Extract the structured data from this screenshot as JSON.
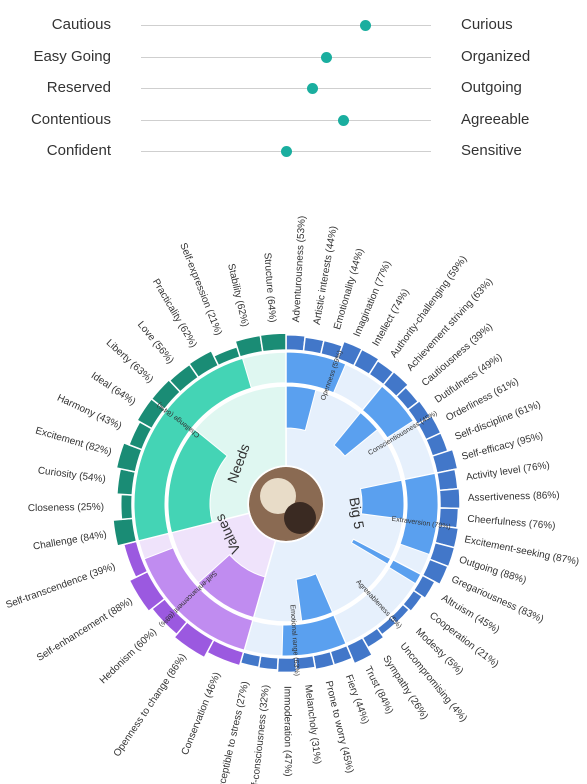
{
  "sliders": [
    {
      "left": "Cautious",
      "right": "Curious",
      "value": 0.773
    },
    {
      "left": "Easy Going",
      "right": "Organized",
      "value": 0.638
    },
    {
      "left": "Reserved",
      "right": "Outgoing",
      "value": 0.59
    },
    {
      "left": "Contentious",
      "right": "Agreeable",
      "value": 0.697
    },
    {
      "left": "Confident",
      "right": "Sensitive",
      "value": 0.503
    }
  ],
  "colors": {
    "needs": "#1a8c75",
    "needs_light": "#44d4b5",
    "needs_pale": "#dff7f1",
    "values": "#9b59e0",
    "values_light": "#c08cf0",
    "values_pale": "#efe3fb",
    "big5": "#4277c9",
    "big5_light": "#5aa0ef",
    "big5_pale": "#e6f0fc",
    "stroke": "#ffffff",
    "knob": "#1aae9f"
  },
  "center": {
    "needs_label": "Needs",
    "values_label": "Values",
    "big5_label": "Big 5",
    "avatar": "avatar-photo"
  },
  "chart_data": {
    "type": "sunburst",
    "groups": [
      {
        "name": "Big 5",
        "categories": [
          {
            "name": "Openness",
            "label": "Openness (59%)",
            "value": 59,
            "facets": [
              {
                "name": "Adventurousness",
                "label": "Adventurousness (53%)",
                "value": 53
              },
              {
                "name": "Artistic interests",
                "label": "Artistic interests (44%)",
                "value": 44
              },
              {
                "name": "Emotionality",
                "label": "Emotionality (44%)",
                "value": 44
              },
              {
                "name": "Imagination",
                "label": "Imagination (77%)",
                "value": 77
              },
              {
                "name": "Intellect",
                "label": "Intellect (74%)",
                "value": 74
              },
              {
                "name": "Authority-challenging",
                "label": "Authority-challenging (59%)",
                "value": 59
              }
            ]
          },
          {
            "name": "Conscientiousness",
            "label": "Conscientiousness (45%)",
            "value": 45,
            "facets": [
              {
                "name": "Achievement striving",
                "label": "Achievement striving (63%)",
                "value": 63
              },
              {
                "name": "Cautiousness",
                "label": "Cautiousness (39%)",
                "value": 39
              },
              {
                "name": "Dutifulness",
                "label": "Dutifulness (49%)",
                "value": 49
              },
              {
                "name": "Orderliness",
                "label": "Orderliness (61%)",
                "value": 61
              },
              {
                "name": "Self-discipline",
                "label": "Self-discipline (61%)",
                "value": 61
              },
              {
                "name": "Self-efficacy",
                "label": "Self-efficacy (95%)",
                "value": 95
              }
            ]
          },
          {
            "name": "Extraversion",
            "label": "Extraversion (79%)",
            "value": 79,
            "facets": [
              {
                "name": "Activity level",
                "label": "Activity level (76%)",
                "value": 76
              },
              {
                "name": "Assertiveness",
                "label": "Assertiveness (86%)",
                "value": 86
              },
              {
                "name": "Cheerfulness",
                "label": "Cheerfulness (76%)",
                "value": 76
              },
              {
                "name": "Excitement-seeking",
                "label": "Excitement-seeking (87%)",
                "value": 87
              },
              {
                "name": "Outgoing",
                "label": "Outgoing (88%)",
                "value": 88
              },
              {
                "name": "Gregariousness",
                "label": "Gregariousness (83%)",
                "value": 83
              }
            ]
          },
          {
            "name": "Agreeableness",
            "label": "Agreeableness (5%)",
            "value": 5,
            "facets": [
              {
                "name": "Altruism",
                "label": "Altruism (45%)",
                "value": 45
              },
              {
                "name": "Cooperation",
                "label": "Cooperation (21%)",
                "value": 21
              },
              {
                "name": "Modesty",
                "label": "Modesty (5%)",
                "value": 5
              },
              {
                "name": "Uncompromising",
                "label": "Uncompromising (4%)",
                "value": 4
              },
              {
                "name": "Sympathy",
                "label": "Sympathy (26%)",
                "value": 26
              },
              {
                "name": "Trust",
                "label": "Trust (84%)",
                "value": 84
              }
            ]
          },
          {
            "name": "Emotional range",
            "label": "Emotional range (63%)",
            "value": 63,
            "facets": [
              {
                "name": "Fiery",
                "label": "Fiery (44%)",
                "value": 44
              },
              {
                "name": "Prone to worry",
                "label": "Prone to worry (45%)",
                "value": 45
              },
              {
                "name": "Melancholy",
                "label": "Melancholy (31%)",
                "value": 31
              },
              {
                "name": "Immoderation",
                "label": "Immoderation (47%)",
                "value": 47
              },
              {
                "name": "Self-consciousness",
                "label": "Self-consciousness (32%)",
                "value": 32
              },
              {
                "name": "Susceptible to stress",
                "label": "Susceptible to stress (27%)",
                "value": 27
              }
            ]
          }
        ]
      },
      {
        "name": "Values",
        "categories": [
          {
            "name": "Self-enhancement",
            "label": "Self-enhancement (88%)",
            "value": 88,
            "facets": [
              {
                "name": "Conservation",
                "label": "Conservation (46%)",
                "value": 46
              },
              {
                "name": "Openness to change",
                "label": "Openness to change (86%)",
                "value": 86
              },
              {
                "name": "Hedonism",
                "label": "Hedonism (60%)",
                "value": 60
              },
              {
                "name": "Self-enhancement",
                "label": "Self-enhancement (88%)",
                "value": 88
              },
              {
                "name": "Self-transcendence",
                "label": "Self-transcendence (39%)",
                "value": 39
              }
            ]
          }
        ]
      },
      {
        "name": "Needs",
        "categories": [
          {
            "name": "Challenge",
            "label": "Challenge (84%)",
            "value": 84,
            "facets": [
              {
                "name": "Challenge",
                "label": "Challenge (84%)",
                "value": 84
              },
              {
                "name": "Closeness",
                "label": "Closeness (25%)",
                "value": 25
              },
              {
                "name": "Curiosity",
                "label": "Curiosity (54%)",
                "value": 54
              },
              {
                "name": "Excitement",
                "label": "Excitement (82%)",
                "value": 82
              },
              {
                "name": "Harmony",
                "label": "Harmony (43%)",
                "value": 43
              },
              {
                "name": "Ideal",
                "label": "Ideal (64%)",
                "value": 64
              },
              {
                "name": "Liberty",
                "label": "Liberty (63%)",
                "value": 63
              },
              {
                "name": "Love",
                "label": "Love (56%)",
                "value": 56
              },
              {
                "name": "Practicality",
                "label": "Practicality (62%)",
                "value": 62
              },
              {
                "name": "Self-expression",
                "label": "Self-expression (21%)",
                "value": 21
              },
              {
                "name": "Stability",
                "label": "Stability (62%)",
                "value": 62
              },
              {
                "name": "Structure",
                "label": "Structure (64%)",
                "value": 64
              }
            ]
          }
        ]
      }
    ]
  }
}
